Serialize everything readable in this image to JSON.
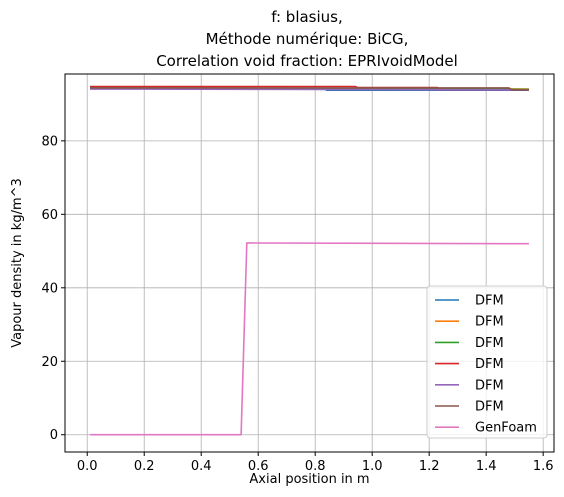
{
  "chart_data": {
    "type": "line",
    "title_lines": [
      "f: blasius,",
      "Méthode numérique: BiCG,",
      "Correlation void fraction: EPRIvoidModel"
    ],
    "xlabel": "Axial position in m",
    "ylabel": "Vapour density in kg/m^3",
    "xlim": [
      -0.078,
      1.638
    ],
    "ylim": [
      -4.7,
      98.2
    ],
    "xticks": [
      0.0,
      0.2,
      0.4,
      0.6,
      0.8,
      1.0,
      1.2,
      1.4,
      1.6
    ],
    "xtick_labels": [
      "0.0",
      "0.2",
      "0.4",
      "0.6",
      "0.8",
      "1.0",
      "1.2",
      "1.4",
      "1.6"
    ],
    "yticks": [
      0,
      20,
      40,
      60,
      80
    ],
    "ytick_labels": [
      "0",
      "20",
      "40",
      "60",
      "80"
    ],
    "grid": true,
    "legend_position": "lower-right",
    "series": [
      {
        "name": "DFM",
        "color": "#1f77b4",
        "x": [
          0.01,
          0.83,
          0.84,
          1.55
        ],
        "y": [
          94.3,
          94.3,
          93.8,
          93.8
        ]
      },
      {
        "name": "DFM",
        "color": "#ff7f0e",
        "x": [
          0.01,
          1.55
        ],
        "y": [
          94.6,
          94.1
        ]
      },
      {
        "name": "DFM",
        "color": "#2ca02c",
        "x": [
          0.01,
          1.55
        ],
        "y": [
          94.5,
          94.0
        ]
      },
      {
        "name": "DFM",
        "color": "#d62728",
        "x": [
          0.01,
          0.94,
          0.95,
          1.23,
          1.24,
          1.55
        ],
        "y": [
          94.8,
          94.8,
          94.5,
          94.5,
          93.9,
          93.9
        ]
      },
      {
        "name": "DFM",
        "color": "#9467bd",
        "x": [
          0.01,
          1.55
        ],
        "y": [
          94.1,
          93.9
        ]
      },
      {
        "name": "DFM",
        "color": "#8c564b",
        "x": [
          0.01,
          1.48,
          1.49,
          1.55
        ],
        "y": [
          94.4,
          94.4,
          93.9,
          93.9
        ]
      },
      {
        "name": "GenFoam",
        "color": "#e377c2",
        "x": [
          0.01,
          0.54,
          0.56,
          1.55
        ],
        "y": [
          0.0,
          0.0,
          52.2,
          52.0
        ]
      }
    ]
  }
}
